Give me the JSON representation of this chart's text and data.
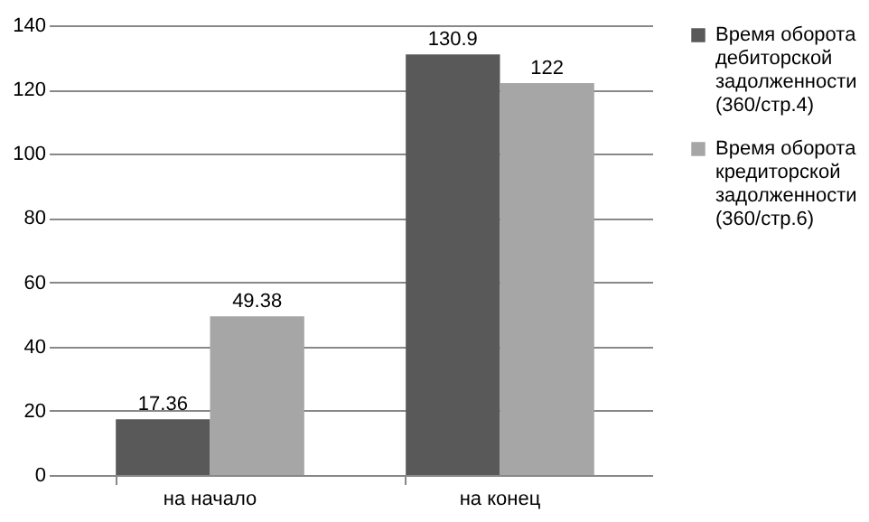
{
  "chart_data": {
    "type": "bar",
    "categories": [
      "на начало",
      "на конец"
    ],
    "series": [
      {
        "name": "Время оборота дебиторской задолженности (360/стр.4)",
        "color": "#595959",
        "values": [
          17.36,
          130.9
        ]
      },
      {
        "name": "Время оборота кредиторской задолженности (360/стр.6)",
        "color": "#a6a6a6",
        "values": [
          49.38,
          122
        ]
      }
    ],
    "ylim": [
      0,
      140
    ],
    "yticks": [
      0,
      20,
      40,
      60,
      80,
      100,
      120,
      140
    ],
    "grid": "y",
    "legend": "right",
    "data_labels": true
  }
}
